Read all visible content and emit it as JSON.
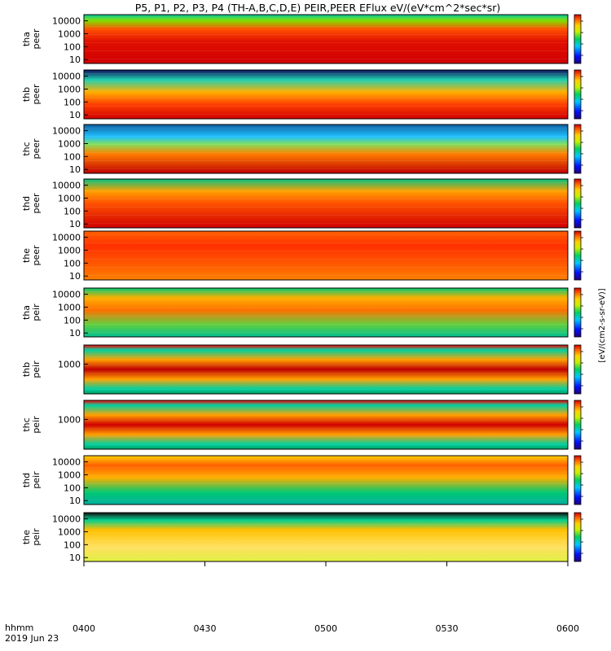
{
  "title": "P5, P1, P2, P3, P4 (TH-A,B,C,D,E) PEIR,PEER EFlux eV/(eV*cm^2*sec*sr)",
  "time_label": "hhmm",
  "date_label": "2019 Jun 23",
  "colorbar_unit": "[eV/(cm2-s-sr-eV)]",
  "colors": {
    "high": "#d00000",
    "mid": "#ffd500",
    "low": "#00c070",
    "vlow": "#0040ff",
    "none": "#ffffff"
  },
  "chart_data": {
    "type": "heatmap",
    "x_range": [
      "0400",
      "0600"
    ],
    "x_ticks": [
      "0400",
      "0430",
      "0500",
      "0530",
      "0600"
    ],
    "colorbar_range": [
      "10^1",
      "10^9"
    ],
    "colorbar_scale": "log",
    "panels": [
      {
        "probe": "tha",
        "species": "peer",
        "ylabel": "tha\npeer",
        "yticks": [
          "10",
          "100",
          "1000",
          "10000"
        ],
        "ylim": [
          5,
          30000
        ],
        "scale": "log"
      },
      {
        "probe": "thb",
        "species": "peer",
        "ylabel": "thb\npeer",
        "yticks": [
          "10",
          "100",
          "1000",
          "10000"
        ],
        "ylim": [
          5,
          30000
        ],
        "scale": "log"
      },
      {
        "probe": "thc",
        "species": "peer",
        "ylabel": "thc\npeer",
        "yticks": [
          "10",
          "100",
          "1000",
          "10000"
        ],
        "ylim": [
          5,
          30000
        ],
        "scale": "log"
      },
      {
        "probe": "thd",
        "species": "peer",
        "ylabel": "thd\npeer",
        "yticks": [
          "10",
          "100",
          "1000",
          "10000"
        ],
        "ylim": [
          5,
          30000
        ],
        "scale": "log"
      },
      {
        "probe": "the",
        "species": "peer",
        "ylabel": "the\npeer",
        "yticks": [
          "10",
          "100",
          "1000",
          "10000"
        ],
        "ylim": [
          5,
          30000
        ],
        "scale": "log"
      },
      {
        "probe": "tha",
        "species": "peir",
        "ylabel": "tha\npeir",
        "yticks": [
          "10",
          "100",
          "1000",
          "10000"
        ],
        "ylim": [
          5,
          30000
        ],
        "scale": "log"
      },
      {
        "probe": "thb",
        "species": "peir",
        "ylabel": "thb\npeir",
        "yticks": [
          "1000"
        ],
        "ylim": [
          5,
          30000
        ],
        "scale": "log"
      },
      {
        "probe": "thc",
        "species": "peir",
        "ylabel": "thc\npeir",
        "yticks": [
          "1000"
        ],
        "ylim": [
          5,
          30000
        ],
        "scale": "log"
      },
      {
        "probe": "thd",
        "species": "peir",
        "ylabel": "thd\npeir",
        "yticks": [
          "10",
          "100",
          "1000",
          "10000"
        ],
        "ylim": [
          5,
          30000
        ],
        "scale": "log"
      },
      {
        "probe": "the",
        "species": "peir",
        "ylabel": "the\npeir",
        "yticks": [
          "10",
          "100",
          "1000",
          "10000"
        ],
        "ylim": [
          5,
          30000
        ],
        "scale": "log"
      }
    ]
  }
}
